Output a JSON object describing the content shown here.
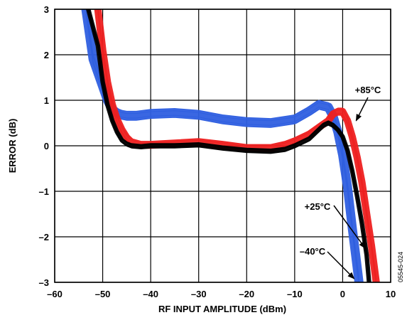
{
  "chart_data": {
    "type": "line",
    "xlabel": "RF INPUT AMPLITUDE (dBm)",
    "ylabel": "ERROR (dB)",
    "xlim": [
      -60,
      10
    ],
    "ylim": [
      -3,
      3
    ],
    "x_ticks": [
      -60,
      -50,
      -40,
      -30,
      -20,
      -10,
      0,
      10
    ],
    "y_ticks": [
      -3,
      -2,
      -1,
      0,
      1,
      2,
      3
    ],
    "x_tick_labels": [
      "–60",
      "–50",
      "–40",
      "–30",
      "–20",
      "–10",
      "0",
      "10"
    ],
    "y_tick_labels": [
      "–3",
      "–2",
      "–1",
      "0",
      "1",
      "2",
      "3"
    ],
    "grid": true,
    "figure_id": "05545-024",
    "series": [
      {
        "name": "–40°C",
        "color": "#2f5fe0",
        "band_halfwidth_db": 0.1,
        "x": [
          -53.5,
          -52.0,
          -50.0,
          -49.0,
          -48.0,
          -47.0,
          -46.0,
          -45.0,
          -43.0,
          -40.0,
          -35.0,
          -30.0,
          -25.0,
          -20.0,
          -15.0,
          -10.0,
          -7.0,
          -5.0,
          -3.0,
          -2.0,
          -1.0,
          0.0,
          1.0,
          2.0,
          2.7,
          3.4
        ],
        "y": [
          3.0,
          1.9,
          1.3,
          1.0,
          0.8,
          0.72,
          0.68,
          0.66,
          0.66,
          0.7,
          0.72,
          0.68,
          0.58,
          0.52,
          0.5,
          0.58,
          0.76,
          0.9,
          0.85,
          0.65,
          0.3,
          -0.2,
          -0.9,
          -1.8,
          -2.4,
          -3.0
        ]
      },
      {
        "name": "+25°C",
        "color": "#000000",
        "band_halfwidth_db": 0.05,
        "x": [
          -53.0,
          -51.0,
          -50.0,
          -49.0,
          -48.0,
          -47.0,
          -46.0,
          -45.0,
          -44.0,
          -42.0,
          -40.0,
          -35.0,
          -30.0,
          -25.0,
          -20.0,
          -15.0,
          -12.0,
          -10.0,
          -7.0,
          -5.0,
          -4.0,
          -3.0,
          -2.0,
          -1.0,
          0.0,
          1.0,
          2.0,
          3.0,
          4.0,
          5.0,
          5.5
        ],
        "y": [
          3.0,
          2.2,
          1.4,
          0.9,
          0.55,
          0.3,
          0.12,
          0.04,
          0.0,
          -0.02,
          0.0,
          0.0,
          0.02,
          -0.05,
          -0.1,
          -0.12,
          -0.08,
          0.0,
          0.15,
          0.35,
          0.45,
          0.5,
          0.45,
          0.35,
          0.2,
          -0.1,
          -0.55,
          -1.1,
          -1.7,
          -2.4,
          -3.0
        ]
      },
      {
        "name": "+85°C",
        "color": "#ee2020",
        "band_halfwidth_db": 0.08,
        "x": [
          -51.0,
          -50.0,
          -49.0,
          -48.0,
          -47.0,
          -46.0,
          -45.0,
          -44.0,
          -42.0,
          -40.0,
          -35.0,
          -30.0,
          -25.0,
          -20.0,
          -15.0,
          -12.0,
          -10.0,
          -7.0,
          -5.0,
          -3.0,
          -2.0,
          -1.0,
          0.0,
          1.0,
          2.0,
          3.0,
          4.0,
          5.0,
          6.0,
          7.0
        ],
        "y": [
          3.0,
          2.1,
          1.4,
          0.9,
          0.58,
          0.35,
          0.18,
          0.08,
          0.02,
          0.02,
          0.05,
          0.08,
          0.02,
          -0.05,
          -0.05,
          0.02,
          0.1,
          0.25,
          0.4,
          0.55,
          0.7,
          0.75,
          0.75,
          0.55,
          0.2,
          -0.25,
          -0.8,
          -1.5,
          -2.2,
          -3.0
        ]
      }
    ],
    "annotations": [
      {
        "text": "+85°C",
        "series": "+85°C",
        "arrow_to": [
          2.8,
          0.55
        ]
      },
      {
        "text": "+25°C",
        "series": "+25°C",
        "arrow_to": [
          4.7,
          -2.25
        ]
      },
      {
        "text": "–40°C",
        "series": "–40°C",
        "arrow_to": [
          2.4,
          -2.92
        ]
      }
    ]
  }
}
